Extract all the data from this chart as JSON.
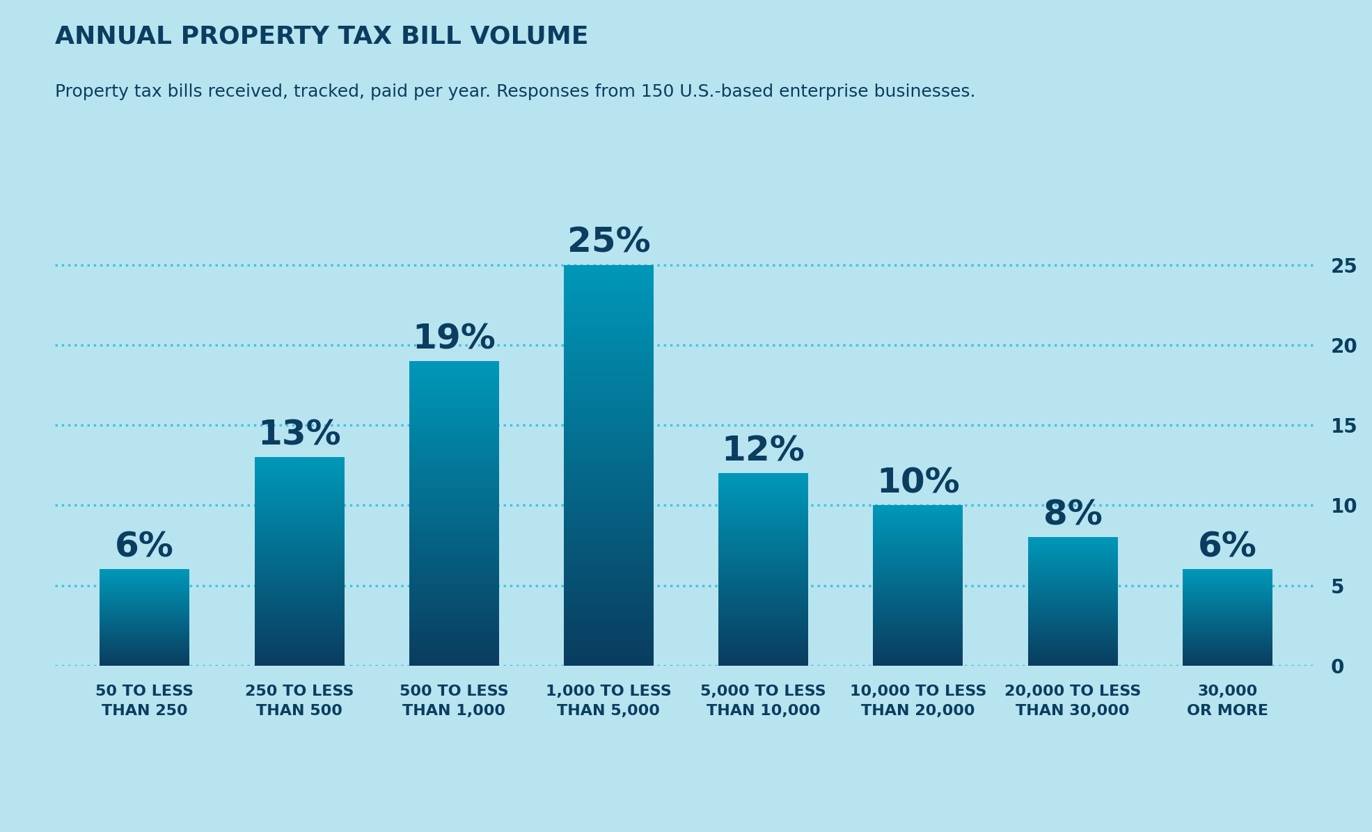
{
  "title": "ANNUAL PROPERTY TAX BILL VOLUME",
  "subtitle": "Property tax bills received, tracked, paid per year. Responses from 150 U.S.-based enterprise businesses.",
  "categories": [
    "50 TO LESS\nTHAN 250",
    "250 TO LESS\nTHAN 500",
    "500 TO LESS\nTHAN 1,000",
    "1,000 TO LESS\nTHAN 5,000",
    "5,000 TO LESS\nTHAN 10,000",
    "10,000 TO LESS\nTHAN 20,000",
    "20,000 TO LESS\nTHAN 30,000",
    "30,000\nOR MORE"
  ],
  "values": [
    6,
    13,
    19,
    25,
    12,
    10,
    8,
    6
  ],
  "labels": [
    "6%",
    "13%",
    "19%",
    "25%",
    "12%",
    "10%",
    "8%",
    "6%"
  ],
  "bar_color_top": "#1ba3c6",
  "bar_color_bottom": "#0a3d5f",
  "background_color": "#b8e4f0",
  "text_color": "#0a3d5f",
  "grid_color": "#40c4e0",
  "ylim": [
    0,
    27
  ],
  "yticks": [
    0,
    5,
    10,
    15,
    20,
    25
  ],
  "title_fontsize": 26,
  "subtitle_fontsize": 18,
  "label_fontsize": 36,
  "tick_fontsize": 20,
  "xlabel_fontsize": 16,
  "bar_width": 0.58
}
